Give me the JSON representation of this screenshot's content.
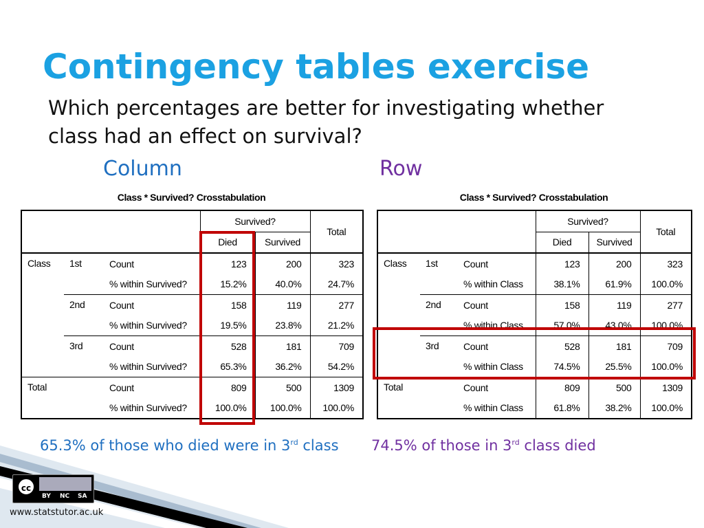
{
  "header": {
    "title": "Contingency tables exercise",
    "question_lines": [
      "Which percentages are better for investigating whether",
      "class had an effect on survival?"
    ]
  },
  "left": {
    "label": "Column",
    "table": {
      "title": "Class * Survived? Crosstabulation",
      "group_header": "Survived?",
      "columns": [
        "Died",
        "Survived",
        "Total"
      ],
      "groups": [
        {
          "label": "Class",
          "subgroups": [
            {
              "label": "1st",
              "rows": [
                {
                  "measure": "Count",
                  "values": [
                    "123",
                    "200",
                    "323"
                  ]
                },
                {
                  "measure": "% within Survived?",
                  "values": [
                    "15.2%",
                    "40.0%",
                    "24.7%"
                  ]
                }
              ]
            },
            {
              "label": "2nd",
              "rows": [
                {
                  "measure": "Count",
                  "values": [
                    "158",
                    "119",
                    "277"
                  ]
                },
                {
                  "measure": "% within Survived?",
                  "values": [
                    "19.5%",
                    "23.8%",
                    "21.2%"
                  ]
                }
              ]
            },
            {
              "label": "3rd",
              "rows": [
                {
                  "measure": "Count",
                  "values": [
                    "528",
                    "181",
                    "709"
                  ]
                },
                {
                  "measure": "% within Survived?",
                  "values": [
                    "65.3%",
                    "36.2%",
                    "54.2%"
                  ]
                }
              ]
            }
          ]
        },
        {
          "label": "Total",
          "rows": [
            {
              "measure": "Count",
              "values": [
                "809",
                "500",
                "1309"
              ]
            },
            {
              "measure": "% within Survived?",
              "values": [
                "100.0%",
                "100.0%",
                "100.0%"
              ]
            }
          ]
        }
      ]
    },
    "caption": {
      "before": "65.3% of those who died were in 3",
      "sup": "rd",
      "after": "class"
    }
  },
  "right": {
    "label": "Row",
    "table": {
      "title": "Class * Survived? Crosstabulation",
      "group_header": "Survived?",
      "columns": [
        "Died",
        "Survived",
        "Total"
      ],
      "groups": [
        {
          "label": "Class",
          "subgroups": [
            {
              "label": "1st",
              "rows": [
                {
                  "measure": "Count",
                  "values": [
                    "123",
                    "200",
                    "323"
                  ]
                },
                {
                  "measure": "% within Class",
                  "values": [
                    "38.1%",
                    "61.9%",
                    "100.0%"
                  ]
                }
              ]
            },
            {
              "label": "2nd",
              "rows": [
                {
                  "measure": "Count",
                  "values": [
                    "158",
                    "119",
                    "277"
                  ]
                },
                {
                  "measure": "% within Class",
                  "values": [
                    "57.0%",
                    "43.0%",
                    "100.0%"
                  ]
                }
              ]
            },
            {
              "label": "3rd",
              "rows": [
                {
                  "measure": "Count",
                  "values": [
                    "528",
                    "181",
                    "709"
                  ]
                },
                {
                  "measure": "% within Class",
                  "values": [
                    "74.5%",
                    "25.5%",
                    "100.0%"
                  ]
                }
              ]
            }
          ]
        },
        {
          "label": "Total",
          "rows": [
            {
              "measure": "Count",
              "values": [
                "809",
                "500",
                "1309"
              ]
            },
            {
              "measure": "% within Class",
              "values": [
                "61.8%",
                "38.2%",
                "100.0%"
              ]
            }
          ]
        }
      ]
    },
    "caption": {
      "before": "74.5% of those in 3",
      "sup": "rd",
      "after": "class died"
    }
  },
  "footer": {
    "license": [
      "BY",
      "NC",
      "SA"
    ],
    "url": "www.statstutor.ac.uk"
  }
}
